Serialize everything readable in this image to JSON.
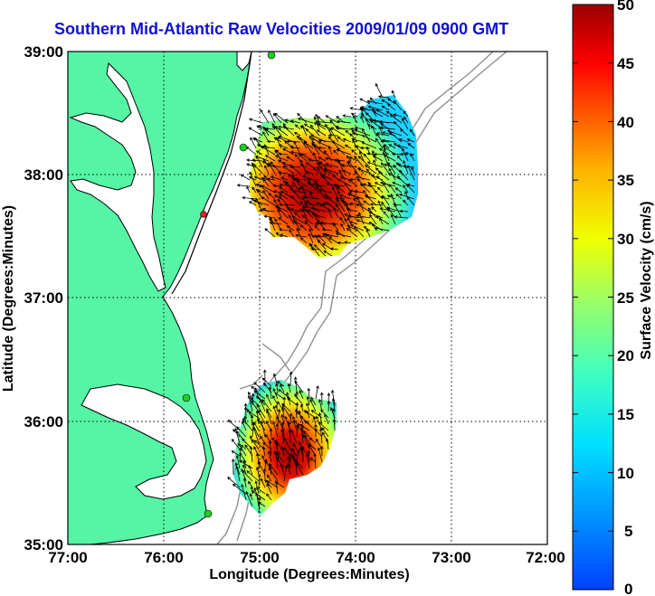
{
  "title": "Southern Mid-Atlantic Raw Velocities 2009/01/09 0900 GMT",
  "xlabel": "Longitude (Degrees:Minutes)",
  "ylabel": "Latitude (Degrees:Minutes)",
  "colorbar_label": "Surface Velocity (cm/s)",
  "x_ticks": [
    "77:00",
    "76:00",
    "75:00",
    "74:00",
    "73:00",
    "72:00"
  ],
  "y_ticks": [
    "39:00",
    "38:00",
    "37:00",
    "36:00",
    "35:00"
  ],
  "cb_ticks": [
    "50",
    "45",
    "40",
    "35",
    "30",
    "25",
    "20",
    "15",
    "10",
    "5",
    "0"
  ],
  "colors": {
    "land": "#55f5a5",
    "coast": "#000000",
    "bathymetry": "#909090",
    "title": "#1010d0",
    "station_green": "#22cc22",
    "station_red": "#dd2222"
  },
  "chart_data": {
    "type": "heatmap",
    "title": "Southern Mid-Atlantic Raw Velocities 2009/01/09 0900 GMT",
    "xlabel": "Longitude (Degrees:Minutes)",
    "ylabel": "Latitude (Degrees:Minutes)",
    "xlim": [
      -77,
      -72
    ],
    "ylim": [
      35,
      39
    ],
    "colorbar": {
      "label": "Surface Velocity (cm/s)",
      "range": [
        0,
        50
      ],
      "colormap": "jet"
    },
    "grid": true,
    "regions": [
      {
        "name": "northern velocity patch",
        "lon_range": [
          -75.1,
          -73.4
        ],
        "lat_range": [
          37.4,
          38.6
        ],
        "max_speed": 50
      },
      {
        "name": "southern velocity patch",
        "lon_range": [
          -75.3,
          -74.1
        ],
        "lat_range": [
          35.2,
          36.6
        ],
        "max_speed": 50
      }
    ]
  }
}
